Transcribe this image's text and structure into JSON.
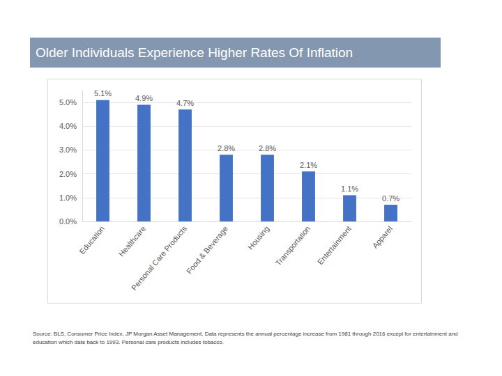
{
  "chart_data": {
    "type": "bar",
    "title": "Older Individuals Experience Higher Rates Of Inflation",
    "categories": [
      "Education",
      "Healthcare",
      "Personal Care Products",
      "Food & Beverage",
      "Housing",
      "Transportation",
      "Entertainment",
      "Apparel"
    ],
    "values": [
      5.1,
      4.9,
      4.7,
      2.8,
      2.8,
      2.1,
      1.1,
      0.7
    ],
    "value_labels": [
      "5.1%",
      "4.9%",
      "4.7%",
      "2.8%",
      "2.8%",
      "2.1%",
      "1.1%",
      "0.7%"
    ],
    "color": "#4472c4",
    "ylim": [
      0,
      5.5
    ],
    "yticks": [
      {
        "value": 0,
        "label": "0.0%"
      },
      {
        "value": 1,
        "label": "1.0%"
      },
      {
        "value": 2,
        "label": "2.0%"
      },
      {
        "value": 3,
        "label": "3.0%"
      },
      {
        "value": 4,
        "label": "4.0%"
      },
      {
        "value": 5,
        "label": "5.0%"
      }
    ],
    "grid": true,
    "data_labels": true,
    "source": "Source: BLS, Consumer Price Index, JP Morgan Asset Management, Data represents the annual percentage increase from 1981 through 2016 except for entertainment and education which date back to 1993.  Personal care products includes tobacco."
  }
}
